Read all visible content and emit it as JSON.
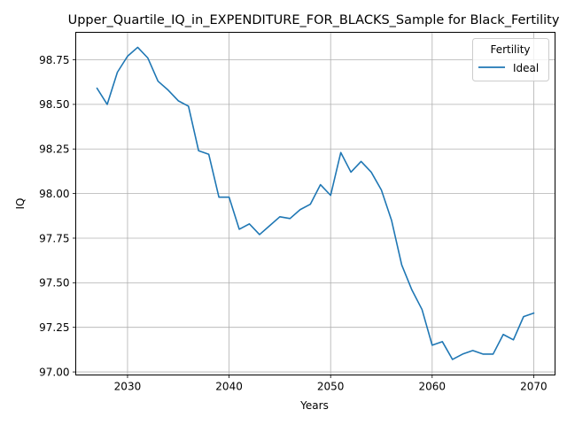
{
  "chart_data": {
    "type": "line",
    "title": "Upper_Quartile_IQ_in_EXPENDITURE_FOR_BLACKS_Sample for Black_Fertility",
    "xlabel": "Years",
    "ylabel": "IQ",
    "xlim": [
      2024.9,
      2072.1
    ],
    "ylim": [
      96.983,
      98.904
    ],
    "xticks": [
      2030,
      2040,
      2050,
      2060,
      2070
    ],
    "yticks": [
      97.0,
      97.25,
      97.5,
      97.75,
      98.0,
      98.25,
      98.5,
      98.75
    ],
    "xtick_labels": [
      "2030",
      "2040",
      "2050",
      "2060",
      "2070"
    ],
    "ytick_labels": [
      "97.00",
      "97.25",
      "97.50",
      "97.75",
      "98.00",
      "98.25",
      "98.50",
      "98.75"
    ],
    "grid": true,
    "legend": {
      "title": "Fertility",
      "placement": "top-right"
    },
    "series": [
      {
        "name": "Ideal",
        "color": "#1f77b4",
        "x": [
          2027,
          2028,
          2029,
          2030,
          2031,
          2032,
          2033,
          2034,
          2035,
          2036,
          2037,
          2038,
          2039,
          2040,
          2041,
          2042,
          2043,
          2044,
          2045,
          2046,
          2047,
          2048,
          2049,
          2050,
          2051,
          2052,
          2053,
          2054,
          2055,
          2056,
          2057,
          2058,
          2059,
          2060,
          2061,
          2062,
          2063,
          2064,
          2065,
          2066,
          2067,
          2068,
          2069,
          2070
        ],
        "values": [
          98.59,
          98.5,
          98.68,
          98.77,
          98.82,
          98.76,
          98.63,
          98.58,
          98.52,
          98.49,
          98.24,
          98.22,
          97.98,
          97.98,
          97.8,
          97.83,
          97.77,
          97.82,
          97.87,
          97.86,
          97.91,
          97.94,
          98.05,
          97.99,
          98.23,
          98.12,
          98.18,
          98.12,
          98.02,
          97.85,
          97.6,
          97.46,
          97.35,
          97.15,
          97.17,
          97.07,
          97.1,
          97.12,
          97.1,
          97.1,
          97.21,
          97.18,
          97.31,
          97.33
        ]
      }
    ]
  }
}
